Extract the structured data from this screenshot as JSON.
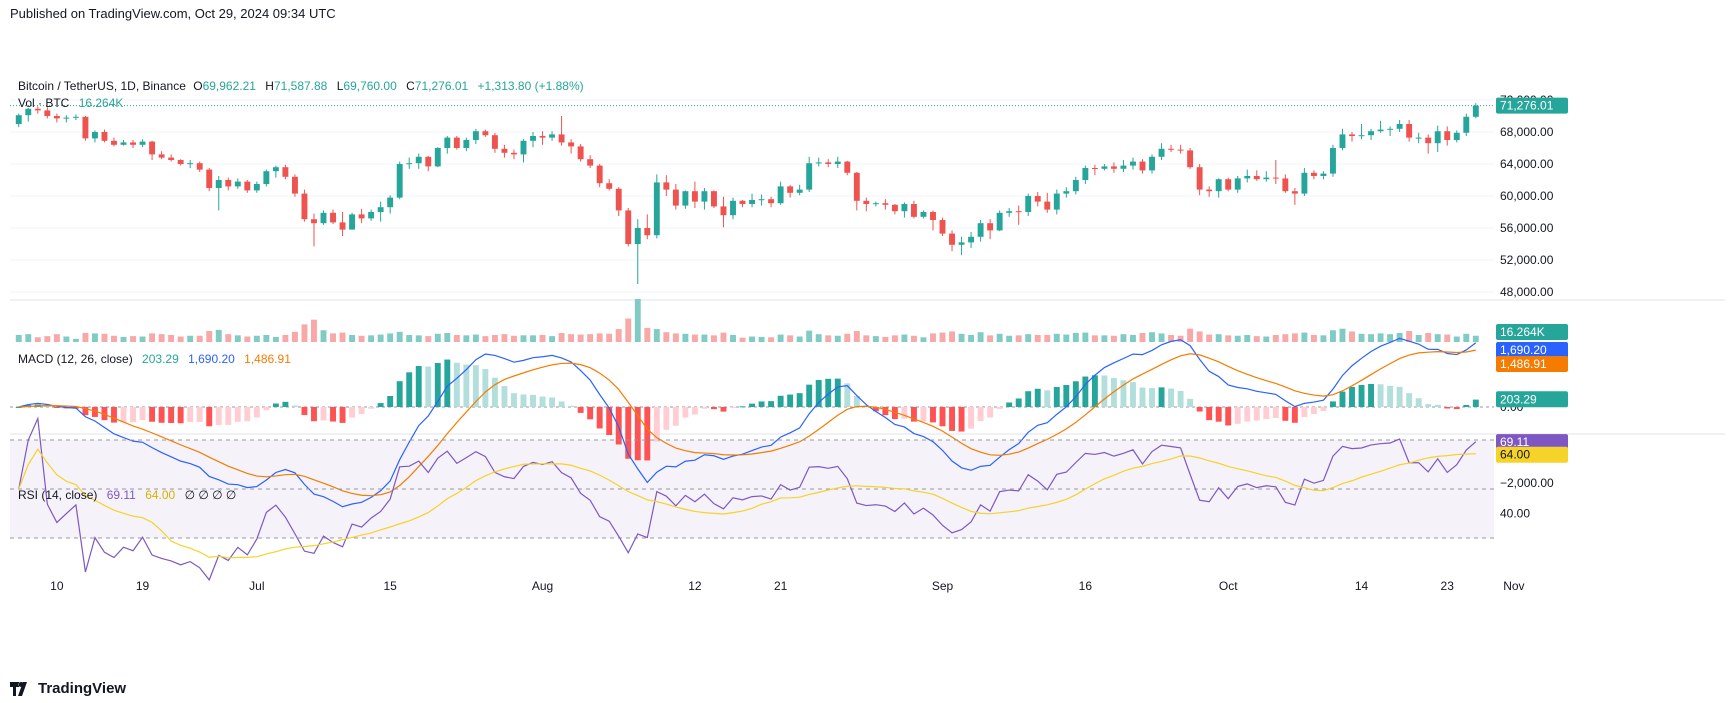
{
  "published": "Published on TradingView.com, Oct 29, 2024 09:34 UTC",
  "brand": "TradingView",
  "symbol_line": {
    "name": "Bitcoin / TetherUS, 1D, Binance",
    "o_label": "O",
    "o": "69,962.21",
    "h_label": "H",
    "h": "71,587.88",
    "l_label": "L",
    "l": "69,760.00",
    "c_label": "C",
    "c": "71,276.01",
    "change": "+1,313.80 (+1.88%)"
  },
  "volume_line": {
    "label": "Vol · BTC",
    "value": "16.264K"
  },
  "macd_line": {
    "label": "MACD (12, 26, close)",
    "hist": "203.29",
    "macd": "1,690.20",
    "signal": "1,486.91"
  },
  "rsi_line": {
    "label": "RSI (14, close)",
    "rsi": "69.11",
    "ma": "64.00",
    "extras": "∅ ∅ ∅ ∅"
  },
  "price_axis": {
    "ticks": [
      "72,000.00",
      "68,000.00",
      "64,000.00",
      "60,000.00",
      "56,000.00",
      "52,000.00",
      "48,000.00"
    ],
    "last": "71,276.01"
  },
  "volume_axis": {
    "last": "16.264K"
  },
  "macd_axis": {
    "ticks": [
      "0.00",
      "−2,000.00"
    ],
    "macd_last": "1,690.20",
    "signal_last": "1,486.91",
    "hist_last": "203.29"
  },
  "rsi_axis": {
    "ticks": [
      "40.00"
    ],
    "rsi_last": "69.11",
    "ma_last": "64.00"
  },
  "time_axis": [
    "10",
    "19",
    "Jul",
    "15",
    "Aug",
    "12",
    "21",
    "Sep",
    "16",
    "Oct",
    "14",
    "23",
    "Nov"
  ],
  "colors": {
    "up": "#26a69a",
    "down": "#ef5350",
    "up_vol": "#80cbc4",
    "down_vol": "#f7a8a7",
    "macd": "#2962ff",
    "signal": "#f57c00",
    "rsi": "#7e57c2",
    "rsi_ma": "#f5d328",
    "hist_up_strong": "#26a69a",
    "hist_up_weak": "#b2dfdb",
    "hist_down_strong": "#ff5252",
    "hist_down_weak": "#ffcdd2"
  },
  "chart_data": {
    "type": "candlestick",
    "title": "Bitcoin / TetherUS, 1D, Binance",
    "price_range": [
      50000,
      73000
    ],
    "candles": [
      [
        69000,
        70300,
        68600,
        70100
      ],
      [
        70100,
        71000,
        69300,
        70900
      ],
      [
        70900,
        71200,
        70300,
        70700
      ],
      [
        70700,
        71100,
        69700,
        70000
      ],
      [
        70000,
        70300,
        69200,
        69700
      ],
      [
        69700,
        70100,
        69200,
        69800
      ],
      [
        69800,
        70200,
        69500,
        69900
      ],
      [
        69900,
        70000,
        66900,
        67200
      ],
      [
        67200,
        68200,
        66700,
        68000
      ],
      [
        68000,
        68300,
        66700,
        66900
      ],
      [
        66900,
        67300,
        66200,
        66400
      ],
      [
        66400,
        67000,
        66300,
        66700
      ],
      [
        66700,
        67000,
        66000,
        66400
      ],
      [
        66400,
        67100,
        66100,
        66800
      ],
      [
        66800,
        66900,
        64500,
        65200
      ],
      [
        65200,
        65600,
        64600,
        64800
      ],
      [
        64800,
        65200,
        64300,
        64500
      ],
      [
        64500,
        64600,
        63800,
        64000
      ],
      [
        64000,
        64500,
        63500,
        64100
      ],
      [
        64100,
        64300,
        63000,
        63300
      ],
      [
        63300,
        63500,
        60600,
        61000
      ],
      [
        61000,
        62500,
        58200,
        62000
      ],
      [
        62000,
        62300,
        60700,
        61200
      ],
      [
        61200,
        62200,
        60900,
        61800
      ],
      [
        61800,
        62000,
        60400,
        60700
      ],
      [
        60700,
        61800,
        60400,
        61500
      ],
      [
        61500,
        63300,
        61200,
        63100
      ],
      [
        63100,
        63800,
        62300,
        63600
      ],
      [
        63600,
        63900,
        62100,
        62400
      ],
      [
        62400,
        62700,
        59900,
        60300
      ],
      [
        60300,
        60800,
        56800,
        57100
      ],
      [
        57100,
        57800,
        53700,
        56600
      ],
      [
        56600,
        58200,
        56400,
        57900
      ],
      [
        57900,
        58300,
        56500,
        56700
      ],
      [
        56700,
        58000,
        55000,
        55800
      ],
      [
        55800,
        57900,
        55800,
        57700
      ],
      [
        57700,
        58400,
        56600,
        57200
      ],
      [
        57200,
        58300,
        56900,
        58000
      ],
      [
        58000,
        59300,
        56800,
        58600
      ],
      [
        58600,
        60100,
        57800,
        59800
      ],
      [
        59800,
        64300,
        59600,
        64000
      ],
      [
        64000,
        64800,
        63400,
        64100
      ],
      [
        64100,
        65300,
        63400,
        64900
      ],
      [
        64900,
        65000,
        63100,
        63700
      ],
      [
        63700,
        66100,
        63600,
        66000
      ],
      [
        66000,
        67500,
        65300,
        67300
      ],
      [
        67300,
        67500,
        65800,
        66000
      ],
      [
        66000,
        67300,
        65600,
        67000
      ],
      [
        67000,
        68400,
        66500,
        68100
      ],
      [
        68100,
        68300,
        67400,
        67600
      ],
      [
        67600,
        67900,
        65400,
        65900
      ],
      [
        65900,
        66400,
        64800,
        65400
      ],
      [
        65400,
        65800,
        64600,
        65200
      ],
      [
        65200,
        67100,
        64200,
        66900
      ],
      [
        66900,
        68000,
        66100,
        67500
      ],
      [
        67500,
        68100,
        66400,
        67300
      ],
      [
        67300,
        68100,
        66900,
        67700
      ],
      [
        67700,
        70000,
        66300,
        66700
      ],
      [
        66700,
        67100,
        65300,
        66200
      ],
      [
        66200,
        66500,
        64300,
        64600
      ],
      [
        64600,
        65100,
        63500,
        63800
      ],
      [
        63800,
        64000,
        61100,
        61600
      ],
      [
        61600,
        62100,
        60700,
        60900
      ],
      [
        60900,
        61100,
        57500,
        58200
      ],
      [
        58200,
        58500,
        53700,
        54000
      ],
      [
        54000,
        57100,
        49000,
        56000
      ],
      [
        56000,
        57700,
        54600,
        55100
      ],
      [
        55100,
        62700,
        54700,
        61700
      ],
      [
        61700,
        62600,
        60000,
        60800
      ],
      [
        60800,
        61500,
        58300,
        58800
      ],
      [
        58800,
        60700,
        58400,
        60600
      ],
      [
        60600,
        61800,
        58500,
        59300
      ],
      [
        59300,
        61000,
        58300,
        60600
      ],
      [
        60600,
        60700,
        58500,
        58700
      ],
      [
        58700,
        59900,
        56100,
        57600
      ],
      [
        57600,
        59800,
        57100,
        59400
      ],
      [
        59400,
        59500,
        58600,
        59000
      ],
      [
        59000,
        60300,
        58600,
        59500
      ],
      [
        59500,
        60200,
        58800,
        59600
      ],
      [
        59600,
        59900,
        58600,
        59100
      ],
      [
        59100,
        61800,
        58900,
        61200
      ],
      [
        61200,
        61400,
        59800,
        60400
      ],
      [
        60400,
        61400,
        60100,
        60800
      ],
      [
        60800,
        64900,
        60500,
        64100
      ],
      [
        64100,
        64800,
        63700,
        64200
      ],
      [
        64200,
        64600,
        63600,
        64000
      ],
      [
        64000,
        64900,
        63500,
        64300
      ],
      [
        64300,
        64400,
        62600,
        62900
      ],
      [
        62900,
        63000,
        58200,
        59400
      ],
      [
        59400,
        59800,
        58100,
        59000
      ],
      [
        59000,
        59300,
        58700,
        59100
      ],
      [
        59100,
        59600,
        58300,
        58900
      ],
      [
        58900,
        59000,
        57700,
        58100
      ],
      [
        58100,
        59200,
        57300,
        59000
      ],
      [
        59000,
        59400,
        57200,
        57400
      ],
      [
        57400,
        58200,
        57200,
        58000
      ],
      [
        58000,
        58200,
        55700,
        57000
      ],
      [
        57000,
        57300,
        55000,
        55300
      ],
      [
        55300,
        55700,
        53100,
        53900
      ],
      [
        53900,
        54900,
        52600,
        54200
      ],
      [
        54200,
        55500,
        53500,
        54900
      ],
      [
        54900,
        57000,
        54300,
        56600
      ],
      [
        56600,
        57100,
        54600,
        55700
      ],
      [
        55700,
        58200,
        55600,
        57900
      ],
      [
        57900,
        58500,
        57400,
        58100
      ],
      [
        58100,
        58800,
        56400,
        58000
      ],
      [
        58000,
        60300,
        57500,
        60000
      ],
      [
        60000,
        60500,
        58700,
        59300
      ],
      [
        59300,
        60400,
        57900,
        58300
      ],
      [
        58300,
        60800,
        57700,
        60300
      ],
      [
        60300,
        61100,
        59800,
        60600
      ],
      [
        60600,
        62400,
        60200,
        62000
      ],
      [
        62000,
        63800,
        61500,
        63500
      ],
      [
        63500,
        63900,
        62600,
        63400
      ],
      [
        63400,
        64000,
        63200,
        63700
      ],
      [
        63700,
        64200,
        62900,
        63400
      ],
      [
        63400,
        64500,
        63000,
        63800
      ],
      [
        63800,
        64800,
        63300,
        64300
      ],
      [
        64300,
        64600,
        62800,
        63200
      ],
      [
        63200,
        65200,
        62800,
        64900
      ],
      [
        64900,
        66600,
        64500,
        65900
      ],
      [
        65900,
        66400,
        65500,
        65800
      ],
      [
        65800,
        66400,
        65300,
        65700
      ],
      [
        65700,
        66000,
        63400,
        63600
      ],
      [
        63600,
        64000,
        60100,
        60800
      ],
      [
        60800,
        61200,
        59900,
        60600
      ],
      [
        60600,
        62200,
        59800,
        62100
      ],
      [
        62100,
        62300,
        60600,
        60800
      ],
      [
        60800,
        62500,
        60400,
        62200
      ],
      [
        62200,
        63300,
        61700,
        62500
      ],
      [
        62500,
        63200,
        61900,
        62100
      ],
      [
        62100,
        63100,
        61800,
        62300
      ],
      [
        62300,
        64500,
        61500,
        62200
      ],
      [
        62200,
        62700,
        60400,
        60600
      ],
      [
        60600,
        61000,
        58900,
        60300
      ],
      [
        60300,
        63500,
        60000,
        62900
      ],
      [
        62900,
        63200,
        62100,
        62500
      ],
      [
        62500,
        63100,
        62100,
        62800
      ],
      [
        62800,
        66400,
        62400,
        66000
      ],
      [
        66000,
        68400,
        65700,
        67700
      ],
      [
        67700,
        68000,
        66800,
        67500
      ],
      [
        67500,
        69000,
        67100,
        67600
      ],
      [
        67600,
        68400,
        67000,
        68100
      ],
      [
        68100,
        69400,
        67900,
        68300
      ],
      [
        68300,
        68700,
        67500,
        68400
      ],
      [
        68400,
        69500,
        68000,
        69000
      ],
      [
        69000,
        69500,
        66800,
        67300
      ],
      [
        67300,
        67900,
        66600,
        67300
      ],
      [
        67300,
        67700,
        65300,
        66600
      ],
      [
        66600,
        68800,
        65500,
        68100
      ],
      [
        68100,
        68700,
        66300,
        67000
      ],
      [
        67000,
        68200,
        66700,
        67900
      ],
      [
        67900,
        70300,
        67500,
        69900
      ],
      [
        69900,
        71600,
        69700,
        71300
      ]
    ],
    "volume_k": [
      18,
      20,
      12,
      15,
      20,
      14,
      8,
      23,
      22,
      21,
      16,
      13,
      15,
      14,
      22,
      20,
      18,
      14,
      16,
      16,
      28,
      31,
      20,
      17,
      14,
      16,
      18,
      13,
      18,
      26,
      45,
      57,
      30,
      22,
      24,
      18,
      16,
      17,
      19,
      22,
      26,
      18,
      17,
      15,
      21,
      23,
      18,
      17,
      19,
      15,
      18,
      20,
      16,
      17,
      17,
      18,
      15,
      23,
      20,
      19,
      20,
      22,
      21,
      33,
      60,
      110,
      36,
      33,
      25,
      22,
      21,
      19,
      19,
      17,
      24,
      18,
      11,
      14,
      13,
      12,
      19,
      17,
      14,
      29,
      20,
      17,
      16,
      21,
      28,
      17,
      15,
      13,
      17,
      19,
      16,
      12,
      22,
      24,
      27,
      21,
      18,
      25,
      17,
      21,
      16,
      17,
      20,
      18,
      18,
      21,
      19,
      23,
      24,
      17,
      17,
      16,
      20,
      18,
      23,
      25,
      22,
      18,
      16,
      34,
      27,
      19,
      20,
      17,
      16,
      18,
      15,
      14,
      18,
      20,
      22,
      24,
      18,
      17,
      30,
      34,
      27,
      21,
      20,
      22,
      20,
      23,
      28,
      18,
      23,
      20,
      19,
      14,
      21,
      16
    ]
  }
}
